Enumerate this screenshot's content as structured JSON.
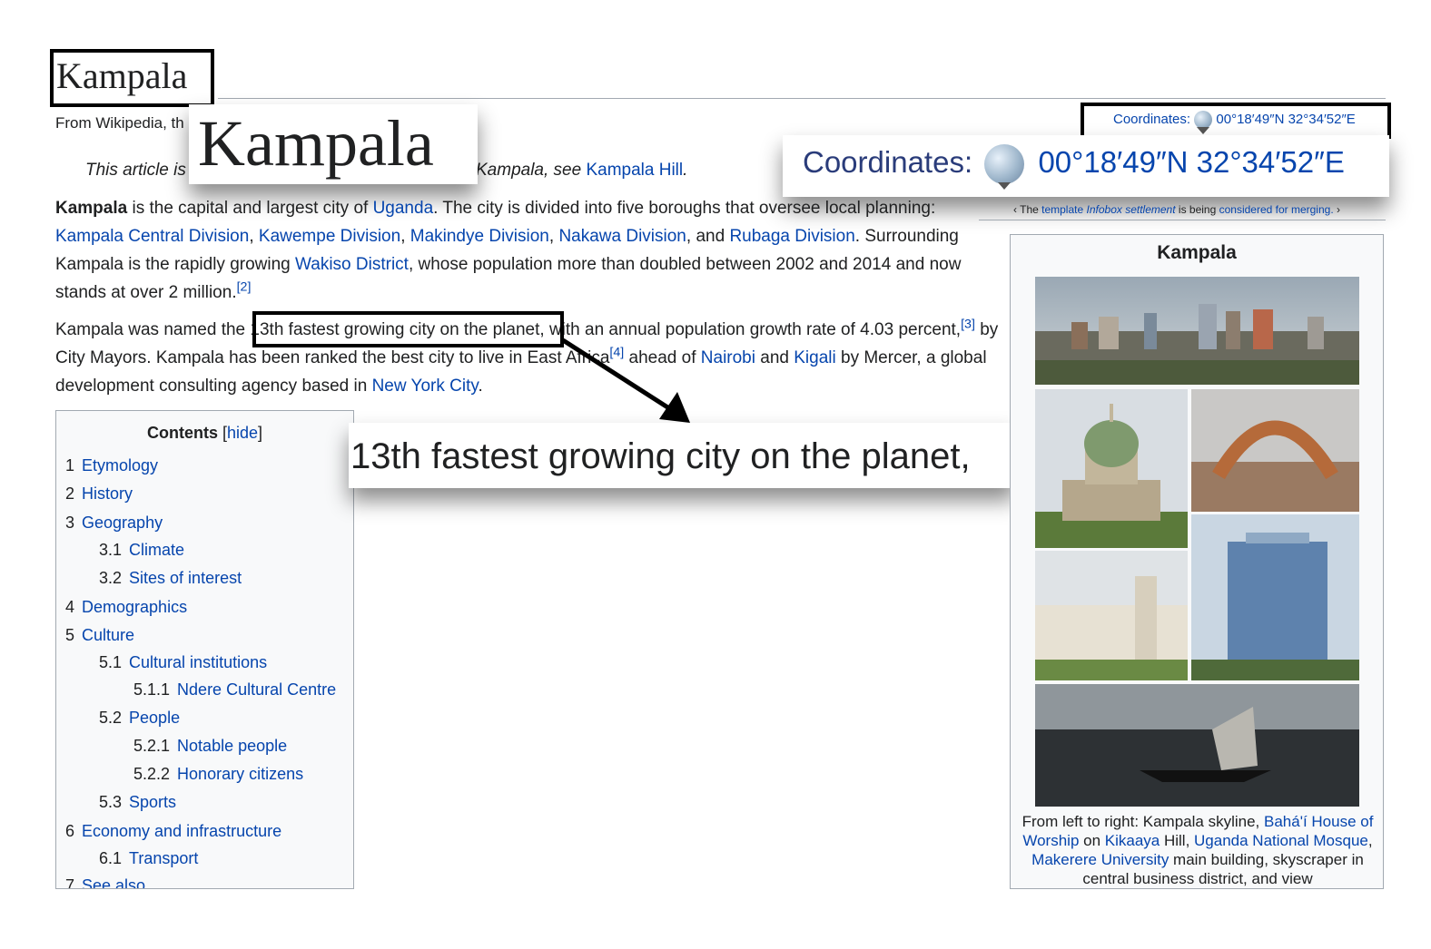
{
  "title": "Kampala",
  "tagline": "From Wikipedia, th",
  "hatnote": {
    "prefix": "This article is",
    "tail": "Kampala, see ",
    "link": "Kampala Hill",
    "end": "."
  },
  "coordinates": {
    "label": "Coordinates:",
    "value": "00°18′49″N 32°34′52″E",
    "icon": "globe-icon"
  },
  "merge_note": {
    "pre": "‹ The ",
    "link1": "template",
    "italic_link": "Infobox settlement",
    "mid": " is being ",
    "link2": "considered for merging.",
    "post": " ›"
  },
  "para1": {
    "bold": "Kampala",
    "t1": " is the capital and largest city of ",
    "l_uganda": "Uganda",
    "t2": ". The city is divided into five boroughs that oversee local planning: ",
    "l_central": "Kampala Central Division",
    "sep1": ", ",
    "l_kawempe": "Kawempe Division",
    "sep2": ", ",
    "l_makindye": "Makindye Division",
    "sep3": ", ",
    "l_nakawa": "Nakawa Division",
    "sep4": ", and ",
    "l_rubaga": "Rubaga Division",
    "t3": ". Surrounding Kampala is the rapidly growing ",
    "l_wakiso": "Wakiso District",
    "t4": ", whose population more than doubled between 2002 and 2014 and now stands at over 2 million.",
    "ref": "[2]"
  },
  "para2": {
    "t1": "Kampala was named the ",
    "highlight": "13th fastest growing city on the planet",
    "t2": ", with an annual population growth rate of 4.03 percent,",
    "ref3": "[3]",
    "t3": " by City Mayors. Kampala has been ranked the best city to live in East Africa",
    "ref4": "[4]",
    "t4": " ahead of ",
    "l_nairobi": "Nairobi",
    "t5": " and ",
    "l_kigali": "Kigali",
    "t6": " by Mercer, a global development consulting agency based in ",
    "l_nyc": "New York City",
    "t7": "."
  },
  "zoom": {
    "title": "Kampala",
    "highlight": "13th fastest growing city on the planet,"
  },
  "toc": {
    "heading": "Contents",
    "hide_open": " [",
    "hide": "hide",
    "hide_close": "]",
    "items": [
      {
        "num": "1",
        "label": "Etymology"
      },
      {
        "num": "2",
        "label": "History"
      },
      {
        "num": "3",
        "label": "Geography"
      },
      {
        "num": "3.1",
        "label": "Climate"
      },
      {
        "num": "3.2",
        "label": "Sites of interest"
      },
      {
        "num": "4",
        "label": "Demographics"
      },
      {
        "num": "5",
        "label": "Culture"
      },
      {
        "num": "5.1",
        "label": "Cultural institutions"
      },
      {
        "num": "5.1.1",
        "label": "Ndere Cultural Centre"
      },
      {
        "num": "5.2",
        "label": "People"
      },
      {
        "num": "5.2.1",
        "label": "Notable people"
      },
      {
        "num": "5.2.2",
        "label": "Honorary citizens"
      },
      {
        "num": "5.3",
        "label": "Sports"
      },
      {
        "num": "6",
        "label": "Economy and infrastructure"
      },
      {
        "num": "6.1",
        "label": "Transport"
      },
      {
        "num": "7",
        "label": "See also"
      }
    ]
  },
  "infobox": {
    "title": "Kampala",
    "caption": {
      "t1": "From left to right: Kampala skyline, ",
      "l1": "Bahá'í House of Worship",
      "t2": " on ",
      "l2": "Kikaaya",
      "t3": " Hill, ",
      "l3": "Uganda National Mosque",
      "t4": ", ",
      "l4": "Makerere University",
      "t5": " main building, skyscraper in central business district, and view"
    }
  }
}
